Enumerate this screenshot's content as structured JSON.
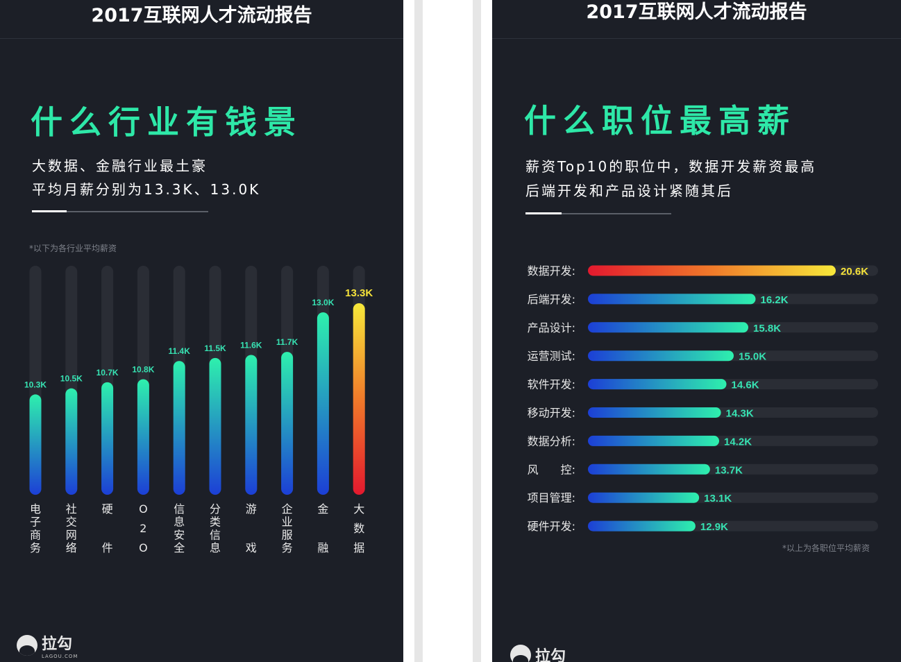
{
  "left": {
    "header": "2017互联网人才流动报告",
    "title": "什么行业有钱景",
    "subtitle_line1": "大数据、金融行业最土豪",
    "subtitle_line2": "平均月薪分别为13.3K、13.0K",
    "note": "*以下为各行业平均薪资",
    "logo_text": "拉勾",
    "logo_sub": "LAGOU.COM"
  },
  "right": {
    "header": "2017互联网人才流动报告",
    "title": "什么职位最高薪",
    "subtitle_line1": "薪资Top10的职位中，数据开发薪资最高",
    "subtitle_line2": "后端开发和产品设计紧随其后",
    "note": "*以上为各职位平均薪资",
    "logo_text": "拉勾"
  },
  "colors": {
    "accent": "#2ee8a8",
    "background": "#1c1f27",
    "track": "#2a2d35",
    "label_teal": "#37e3b3",
    "label_yellow": "#f5e23a"
  },
  "chart_data": [
    {
      "type": "bar",
      "orientation": "vertical",
      "categories": [
        "电子商务",
        "社交网络",
        "硬件",
        "O2O",
        "信息安全",
        "分类信息",
        "游戏",
        "企业服务",
        "金融",
        "大数据"
      ],
      "values": [
        10.3,
        10.5,
        10.7,
        10.8,
        11.4,
        11.5,
        11.6,
        11.7,
        13.0,
        13.3
      ],
      "value_labels": [
        "10.3K",
        "10.5K",
        "10.7K",
        "10.8K",
        "11.4K",
        "11.5K",
        "11.6K",
        "11.7K",
        "13.0K",
        "13.3K"
      ],
      "unit": "K",
      "highlight_index": 9
    },
    {
      "type": "bar",
      "orientation": "horizontal",
      "categories": [
        "数据开发:",
        "后端开发:",
        "产品设计:",
        "运营测试:",
        "软件开发:",
        "移动开发:",
        "数据分析:",
        "风　　控:",
        "项目管理:",
        "硬件开发:"
      ],
      "values": [
        20.6,
        16.2,
        15.8,
        15.0,
        14.6,
        14.3,
        14.2,
        13.7,
        13.1,
        12.9
      ],
      "value_labels": [
        "20.6K",
        "16.2K",
        "15.8K",
        "15.0K",
        "14.6K",
        "14.3K",
        "14.2K",
        "13.7K",
        "13.1K",
        "12.9K"
      ],
      "unit": "K",
      "highlight_index": 0
    }
  ]
}
